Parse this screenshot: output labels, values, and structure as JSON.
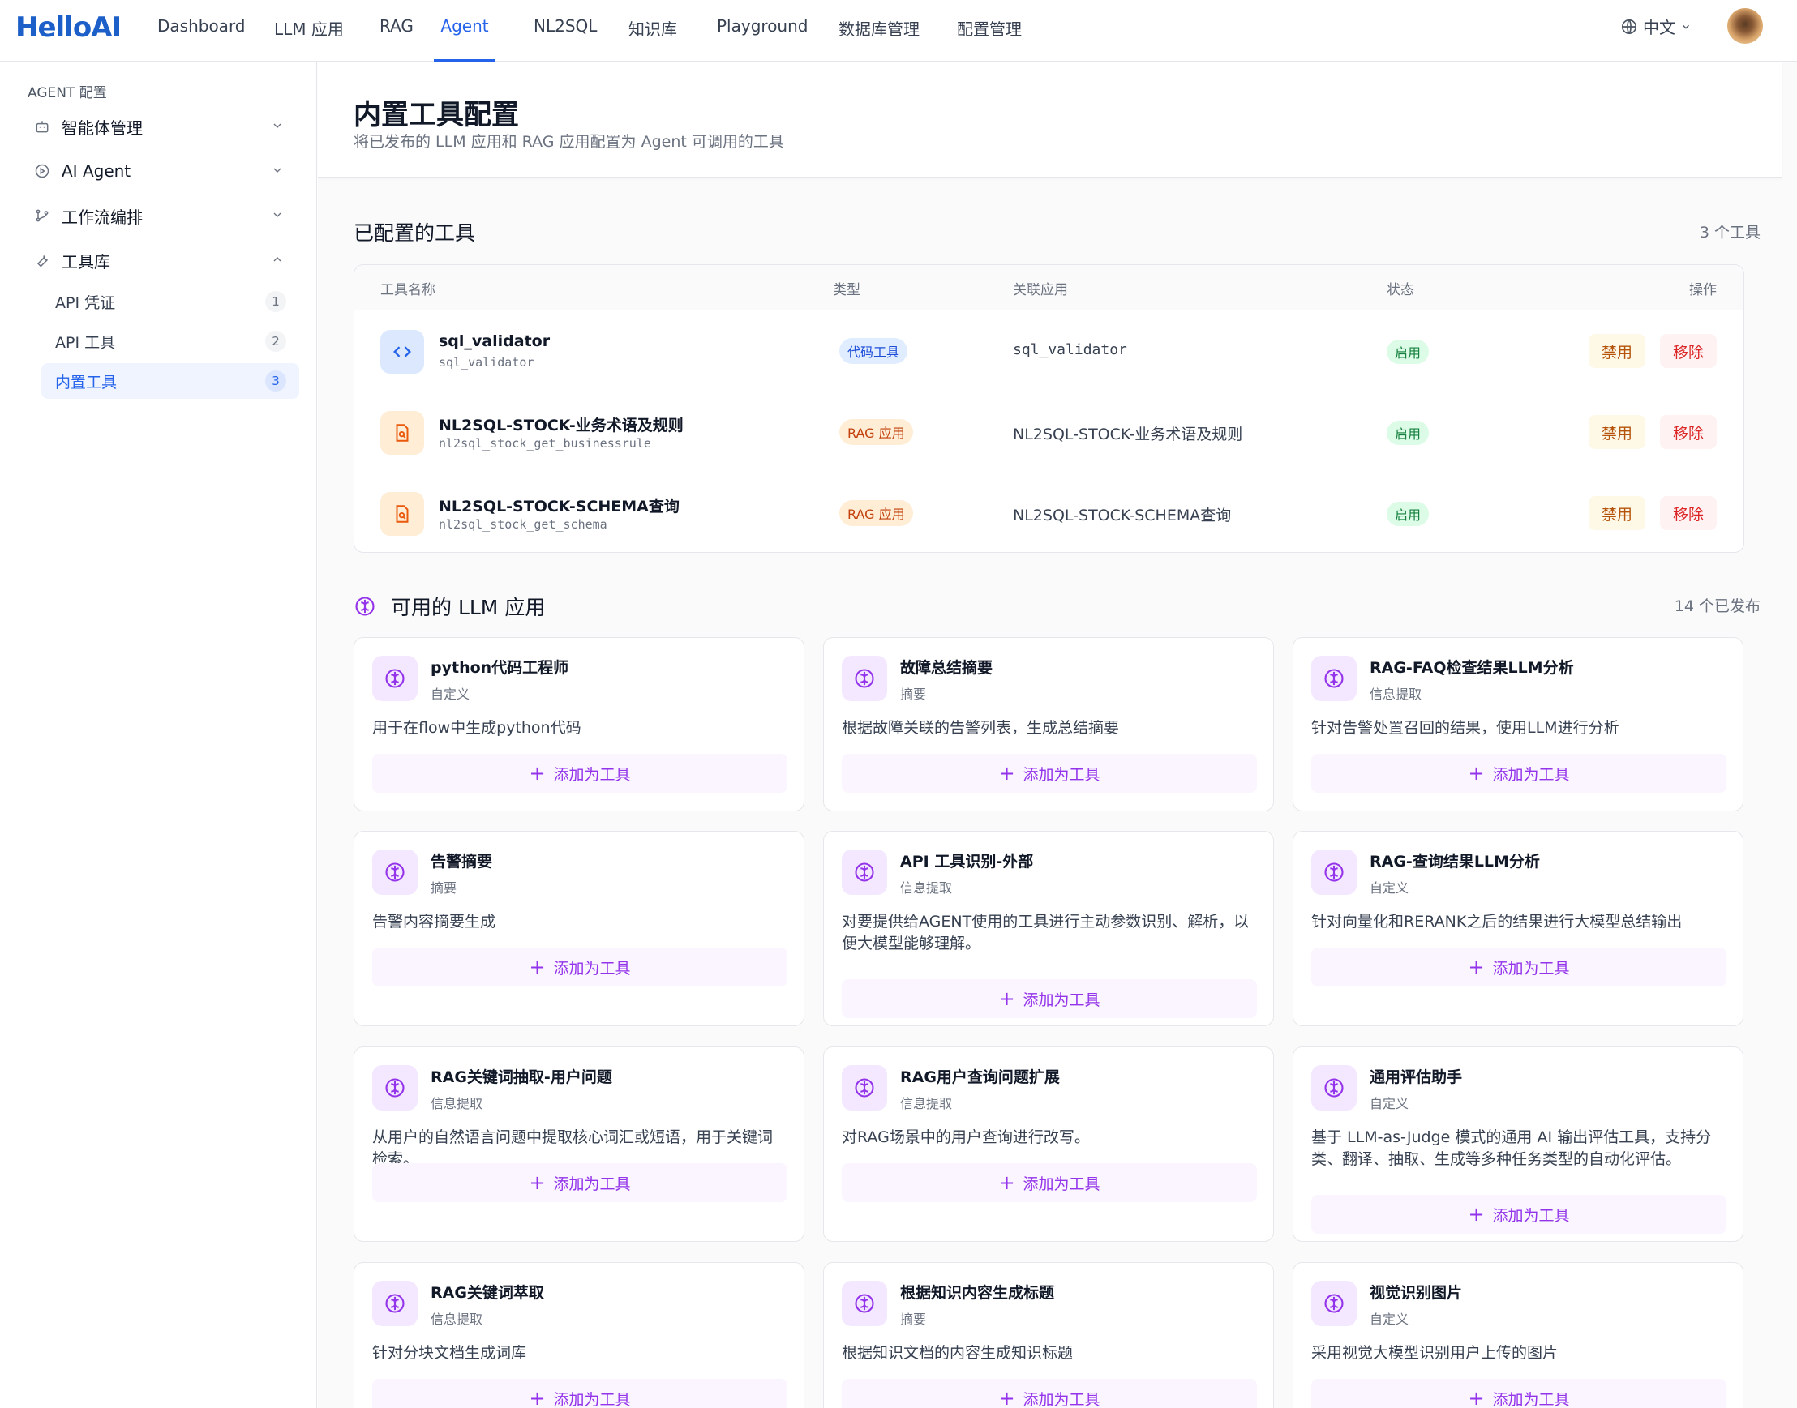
{
  "app": {
    "logo": "HelloAI"
  },
  "nav": {
    "tabs": [
      "Dashboard",
      "LLM 应用",
      "RAG",
      "Agent",
      "NL2SQL",
      "知识库",
      "Playground",
      "数据库管理",
      "配置管理"
    ],
    "active": "Agent",
    "language": "中文"
  },
  "sidebar": {
    "heading": "AGENT 配置",
    "items": [
      {
        "label": "智能体管理",
        "icon": "robot-icon",
        "expanded": false
      },
      {
        "label": "AI Agent",
        "icon": "play-circle-icon",
        "expanded": false
      },
      {
        "label": "工作流编排",
        "icon": "branch-icon",
        "expanded": false
      },
      {
        "label": "工具库",
        "icon": "wrench-icon",
        "expanded": true
      }
    ],
    "sub_items": [
      {
        "label": "API 凭证",
        "count": "1"
      },
      {
        "label": "API 工具",
        "count": "2"
      },
      {
        "label": "内置工具",
        "count": "3",
        "active": true
      }
    ]
  },
  "header": {
    "title": "内置工具配置",
    "subtitle": "将已发布的 LLM 应用和 RAG 应用配置为 Agent 可调用的工具"
  },
  "configured": {
    "title": "已配置的工具",
    "count": "3 个工具",
    "columns": [
      "工具名称",
      "类型",
      "关联应用",
      "状态",
      "操作"
    ],
    "rows": [
      {
        "name": "sql_validator",
        "code": "sql_validator",
        "type": "代码工具",
        "app": "sql_validator",
        "status": "启用",
        "disable": "禁用",
        "remove": "移除",
        "icon": "code-icon"
      },
      {
        "name": "NL2SQL-STOCK-业务术语及规则",
        "code": "nl2sql_stock_get_businessrule",
        "type": "RAG 应用",
        "app": "NL2SQL-STOCK-业务术语及规则",
        "status": "启用",
        "disable": "禁用",
        "remove": "移除",
        "icon": "file-search-icon"
      },
      {
        "name": "NL2SQL-STOCK-SCHEMA查询",
        "code": "nl2sql_stock_get_schema",
        "type": "RAG 应用",
        "app": "NL2SQL-STOCK-SCHEMA查询",
        "status": "启用",
        "disable": "禁用",
        "remove": "移除",
        "icon": "file-search-icon"
      }
    ],
    "colors": {
      "code_tag_bg": "#e0ecff",
      "code_tag_fg": "#1d4ed8",
      "rag_tag_bg": "#ffedd5",
      "rag_tag_fg": "#c2410c"
    }
  },
  "llm": {
    "title": "可用的 LLM 应用",
    "count": "14 个已发布",
    "add_label": "添加为工具",
    "cards": [
      {
        "title": "python代码工程师",
        "tag": "自定义",
        "desc": "用于在flow中生成python代码"
      },
      {
        "title": "故障总结摘要",
        "tag": "摘要",
        "desc": "根据故障关联的告警列表，生成总结摘要"
      },
      {
        "title": "RAG-FAQ检查结果LLM分析",
        "tag": "信息提取",
        "desc": "针对告警处置召回的结果，使用LLM进行分析"
      },
      {
        "title": "告警摘要",
        "tag": "摘要",
        "desc": "告警内容摘要生成"
      },
      {
        "title": "API 工具识别-外部",
        "tag": "信息提取",
        "desc": "对要提供给AGENT使用的工具进行主动参数识别、解析，以便大模型能够理解。"
      },
      {
        "title": "RAG-查询结果LLM分析",
        "tag": "自定义",
        "desc": "针对向量化和RERANK之后的结果进行大模型总结输出"
      },
      {
        "title": "RAG关键词抽取-用户问题",
        "tag": "信息提取",
        "desc": "从用户的自然语言问题中提取核心词汇或短语，用于关键词检索。"
      },
      {
        "title": "RAG用户查询问题扩展",
        "tag": "信息提取",
        "desc": "对RAG场景中的用户查询进行改写。"
      },
      {
        "title": "通用评估助手",
        "tag": "自定义",
        "desc": "基于 LLM-as-Judge 模式的通用 AI 输出评估工具，支持分类、翻译、抽取、生成等多种任务类型的自动化评估。"
      },
      {
        "title": "RAG关键词萃取",
        "tag": "信息提取",
        "desc": "针对分块文档生成词库"
      },
      {
        "title": "根据知识内容生成标题",
        "tag": "摘要",
        "desc": "根据知识文档的内容生成知识标题"
      },
      {
        "title": "视觉识别图片",
        "tag": "自定义",
        "desc": "采用视觉大模型识别用户上传的图片"
      }
    ]
  }
}
